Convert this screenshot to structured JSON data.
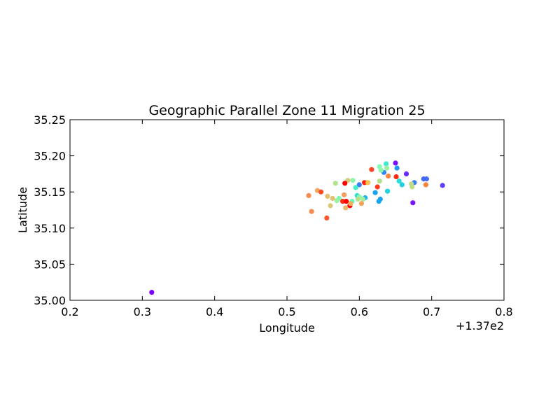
{
  "chart_data": {
    "type": "scatter",
    "title": "Geographic Parallel Zone 11 Migration 25",
    "xlabel": "Longitude",
    "ylabel": "Latitude",
    "x_offset_label": "+1.37e2",
    "xlim": [
      0.2,
      0.8
    ],
    "ylim": [
      35.0,
      35.25
    ],
    "xticks": [
      "0.2",
      "0.3",
      "0.4",
      "0.5",
      "0.6",
      "0.7",
      "0.8"
    ],
    "yticks": [
      "35.00",
      "35.05",
      "35.10",
      "35.15",
      "35.20",
      "35.25"
    ],
    "grid": false,
    "points": [
      {
        "x": 0.313,
        "y": 35.011,
        "color": "#7f00ff"
      },
      {
        "x": 0.65,
        "y": 35.19,
        "color": "#7a12ff"
      },
      {
        "x": 0.665,
        "y": 35.175,
        "color": "#6a2cfe"
      },
      {
        "x": 0.715,
        "y": 35.159,
        "color": "#6040fc"
      },
      {
        "x": 0.674,
        "y": 35.135,
        "color": "#7a14ff"
      },
      {
        "x": 0.693,
        "y": 35.168,
        "color": "#4c6bf6"
      },
      {
        "x": 0.689,
        "y": 35.168,
        "color": "#4466f5"
      },
      {
        "x": 0.676,
        "y": 35.163,
        "color": "#3a7ff1"
      },
      {
        "x": 0.652,
        "y": 35.183,
        "color": "#2196f3"
      },
      {
        "x": 0.634,
        "y": 35.177,
        "color": "#2e8af2"
      },
      {
        "x": 0.6,
        "y": 35.16,
        "color": "#3a7ff1"
      },
      {
        "x": 0.622,
        "y": 35.149,
        "color": "#16a4ef"
      },
      {
        "x": 0.629,
        "y": 35.14,
        "color": "#1aa0ef"
      },
      {
        "x": 0.627,
        "y": 35.137,
        "color": "#14a6ef"
      },
      {
        "x": 0.608,
        "y": 35.142,
        "color": "#1ab2ea"
      },
      {
        "x": 0.639,
        "y": 35.151,
        "color": "#1ed2de"
      },
      {
        "x": 0.659,
        "y": 35.16,
        "color": "#1ed2de"
      },
      {
        "x": 0.655,
        "y": 35.165,
        "color": "#2adcd6"
      },
      {
        "x": 0.637,
        "y": 35.189,
        "color": "#3cead0"
      },
      {
        "x": 0.597,
        "y": 35.145,
        "color": "#2ee0d4"
      },
      {
        "x": 0.595,
        "y": 35.156,
        "color": "#42eec8"
      },
      {
        "x": 0.628,
        "y": 35.185,
        "color": "#80ffb4"
      },
      {
        "x": 0.63,
        "y": 35.18,
        "color": "#90f7a8"
      },
      {
        "x": 0.638,
        "y": 35.183,
        "color": "#9cf2a0"
      },
      {
        "x": 0.591,
        "y": 35.166,
        "color": "#8cf7ab"
      },
      {
        "x": 0.572,
        "y": 35.141,
        "color": "#7dfbb6"
      },
      {
        "x": 0.569,
        "y": 35.138,
        "color": "#9af2a2"
      },
      {
        "x": 0.59,
        "y": 35.137,
        "color": "#66f8be"
      },
      {
        "x": 0.6,
        "y": 35.143,
        "color": "#8cf7ab"
      },
      {
        "x": 0.605,
        "y": 35.14,
        "color": "#a0f09c"
      },
      {
        "x": 0.628,
        "y": 35.165,
        "color": "#b4e28c"
      },
      {
        "x": 0.567,
        "y": 35.162,
        "color": "#b4e28c"
      },
      {
        "x": 0.673,
        "y": 35.157,
        "color": "#c0dc86"
      },
      {
        "x": 0.672,
        "y": 35.161,
        "color": "#bcdc88"
      },
      {
        "x": 0.61,
        "y": 35.163,
        "color": "#c4d884"
      },
      {
        "x": 0.584,
        "y": 35.166,
        "color": "#d6cc7a"
      },
      {
        "x": 0.556,
        "y": 35.144,
        "color": "#e4c070"
      },
      {
        "x": 0.563,
        "y": 35.141,
        "color": "#e0c474"
      },
      {
        "x": 0.56,
        "y": 35.131,
        "color": "#dac878"
      },
      {
        "x": 0.581,
        "y": 35.128,
        "color": "#eab868"
      },
      {
        "x": 0.603,
        "y": 35.134,
        "color": "#f4a45e"
      },
      {
        "x": 0.579,
        "y": 35.146,
        "color": "#f49c5a"
      },
      {
        "x": 0.542,
        "y": 35.152,
        "color": "#f0a862"
      },
      {
        "x": 0.53,
        "y": 35.145,
        "color": "#f48c52"
      },
      {
        "x": 0.534,
        "y": 35.123,
        "color": "#f48c52"
      },
      {
        "x": 0.64,
        "y": 35.172,
        "color": "#f8843c"
      },
      {
        "x": 0.692,
        "y": 35.16,
        "color": "#f8843c"
      },
      {
        "x": 0.555,
        "y": 35.114,
        "color": "#ff5a2c"
      },
      {
        "x": 0.547,
        "y": 35.15,
        "color": "#ff4c24"
      },
      {
        "x": 0.617,
        "y": 35.181,
        "color": "#ff4424"
      },
      {
        "x": 0.625,
        "y": 35.157,
        "color": "#ff3a1c"
      },
      {
        "x": 0.651,
        "y": 35.171,
        "color": "#ff2a10"
      },
      {
        "x": 0.607,
        "y": 35.163,
        "color": "#ff2410"
      },
      {
        "x": 0.58,
        "y": 35.162,
        "color": "#ff0000"
      },
      {
        "x": 0.577,
        "y": 35.137,
        "color": "#ff2a10"
      },
      {
        "x": 0.582,
        "y": 35.137,
        "color": "#ff0000"
      },
      {
        "x": 0.587,
        "y": 35.131,
        "color": "#ff0000"
      },
      {
        "x": 0.612,
        "y": 35.163,
        "color": "#f8c24e"
      },
      {
        "x": 0.588,
        "y": 35.134,
        "color": "#f2b05c"
      },
      {
        "x": 0.598,
        "y": 35.14,
        "color": "#b8e08a"
      }
    ]
  }
}
